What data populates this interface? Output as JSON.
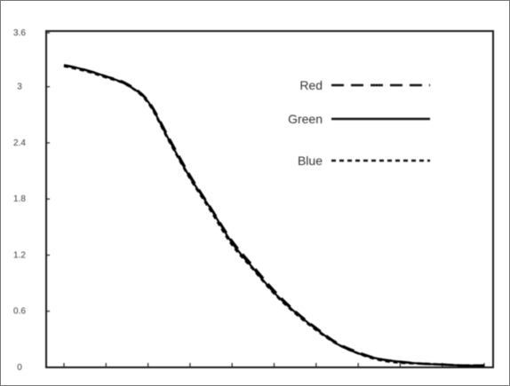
{
  "chart_data": {
    "type": "line",
    "title": "",
    "xlabel": "",
    "ylabel": "",
    "ylim": [
      0,
      3.5
    ],
    "yticks": [
      0,
      0.6,
      1.2,
      1.8,
      2.4,
      3,
      3.6
    ],
    "ytick_labels": [
      "0",
      "0.6",
      "1.2",
      "1.8",
      "2.4",
      "3",
      "3.6"
    ],
    "xlim": [
      0,
      1
    ],
    "x_tick_count": 11,
    "grid": false,
    "legend": {
      "placement": "top-right",
      "entries": [
        {
          "name": "Red",
          "style": "long-dash"
        },
        {
          "name": "Green",
          "style": "solid"
        },
        {
          "name": "Blue",
          "style": "short-dash"
        }
      ]
    },
    "x": [
      0,
      0.05,
      0.1,
      0.15,
      0.2,
      0.25,
      0.3,
      0.35,
      0.4,
      0.45,
      0.5,
      0.55,
      0.6,
      0.65,
      0.7,
      0.75,
      0.8,
      0.85,
      0.9,
      0.95,
      1
    ],
    "series": [
      {
        "name": "Red",
        "color": "#000000",
        "values": [
          3.23,
          3.18,
          3.11,
          3.03,
          2.85,
          2.45,
          2.05,
          1.7,
          1.35,
          1.08,
          0.82,
          0.6,
          0.42,
          0.26,
          0.16,
          0.09,
          0.06,
          0.04,
          0.03,
          0.02,
          0.02
        ]
      },
      {
        "name": "Green",
        "color": "#000000",
        "values": [
          3.23,
          3.18,
          3.11,
          3.02,
          2.84,
          2.43,
          2.03,
          1.69,
          1.33,
          1.06,
          0.8,
          0.59,
          0.41,
          0.25,
          0.15,
          0.09,
          0.06,
          0.04,
          0.03,
          0.02,
          0.02
        ]
      },
      {
        "name": "Blue",
        "color": "#000000",
        "values": [
          3.22,
          3.17,
          3.1,
          3.02,
          2.83,
          2.42,
          2.02,
          1.67,
          1.31,
          1.05,
          0.79,
          0.58,
          0.4,
          0.25,
          0.15,
          0.08,
          0.05,
          0.04,
          0.03,
          0.02,
          0.02
        ]
      }
    ]
  }
}
